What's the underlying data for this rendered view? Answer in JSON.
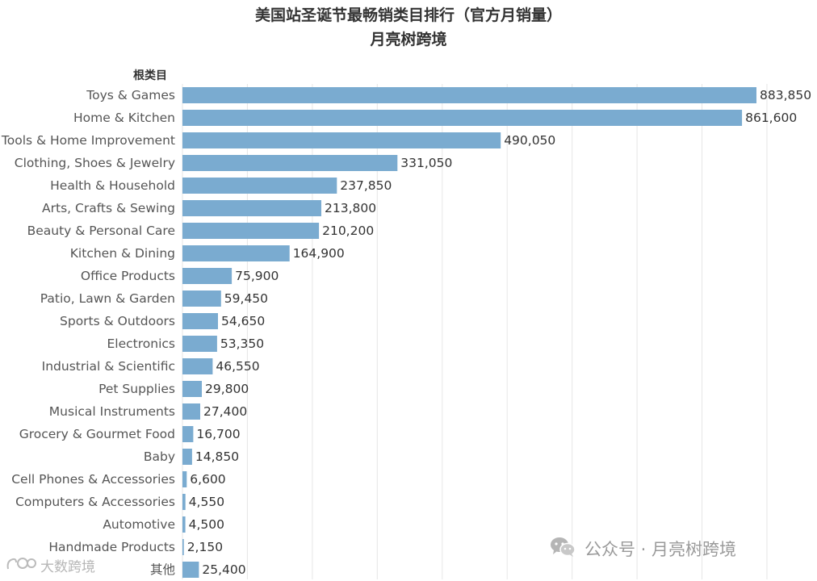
{
  "chart_data": {
    "type": "bar",
    "orientation": "horizontal",
    "title": "美国站圣诞节最畅销类目排行（官方月销量）",
    "subtitle": "月亮树跨境",
    "axis_header": "根类目",
    "xlabel": "",
    "ylabel": "",
    "xlim": [
      0,
      900000
    ],
    "grid": true,
    "bar_color": "#7aabd0",
    "categories": [
      "Toys & Games",
      "Home & Kitchen",
      "Tools & Home Improvement",
      "Clothing, Shoes & Jewelry",
      "Health & Household",
      "Arts, Crafts & Sewing",
      "Beauty & Personal Care",
      "Kitchen & Dining",
      "Office Products",
      "Patio, Lawn & Garden",
      "Sports & Outdoors",
      "Electronics",
      "Industrial & Scientific",
      "Pet Supplies",
      "Musical Instruments",
      "Grocery & Gourmet Food",
      "Baby",
      "Cell Phones & Accessories",
      "Computers & Accessories",
      "Automotive",
      "Handmade Products",
      "其他"
    ],
    "values": [
      883850,
      861600,
      490050,
      331050,
      237850,
      213800,
      210200,
      164900,
      75900,
      59450,
      54650,
      53350,
      46550,
      29800,
      27400,
      16700,
      14850,
      6600,
      4550,
      4500,
      2150,
      25400
    ],
    "value_labels": [
      "883,850",
      "861,600",
      "490,050",
      "331,050",
      "237,850",
      "213,800",
      "210,200",
      "164,900",
      "75,900",
      "59,450",
      "54,650",
      "53,350",
      "46,550",
      "29,800",
      "27,400",
      "16,700",
      "14,850",
      "6,600",
      "4,550",
      "4,500",
      "2,150",
      "25,400"
    ]
  },
  "watermark": {
    "right_text": "公众号 · 月亮树跨境",
    "right_icon": "wechat-icon",
    "left_text": "大数跨境",
    "left_icon": "brand-logo-icon"
  }
}
